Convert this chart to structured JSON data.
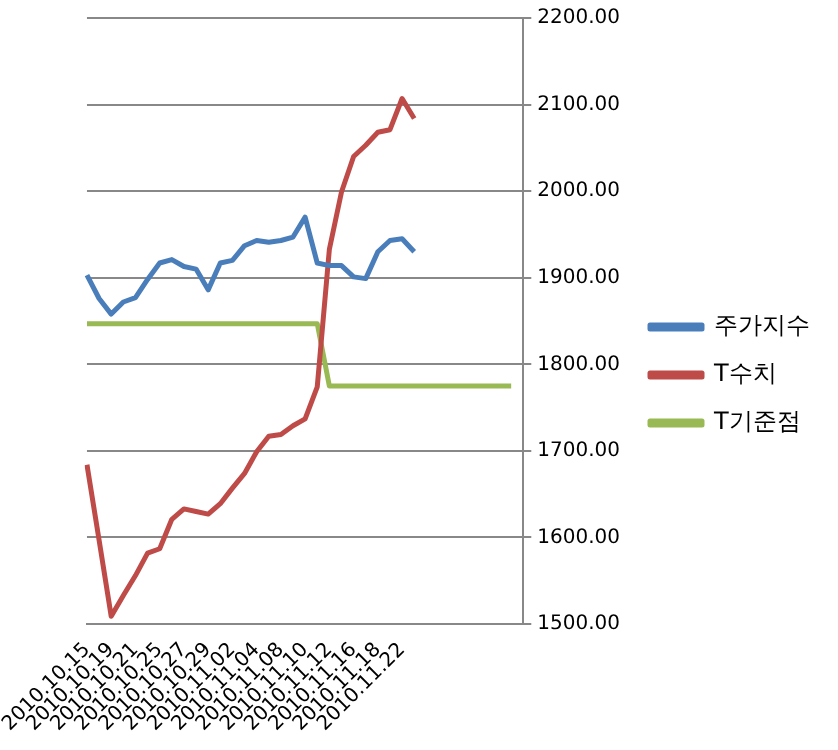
{
  "chart_data": {
    "type": "line",
    "categories": [
      "2010.10.15",
      null,
      "2010.10.19",
      null,
      "2010.10.21",
      null,
      "2010.10.25",
      null,
      "2010.10.27",
      null,
      "2010.10.29",
      null,
      "2010.11.02",
      null,
      "2010.11.04",
      null,
      "2010.11.08",
      null,
      "2010.11.10",
      null,
      "2010.11.12",
      null,
      "2010.11.16",
      null,
      "2010.11.18",
      null,
      "2010.11.22",
      null,
      null,
      null,
      null,
      null,
      null,
      null,
      null,
      null,
      null
    ],
    "series": [
      {
        "name": "주가지수",
        "color": "#4a7ebb",
        "values": [
          1903,
          1876,
          1858,
          1872,
          1877,
          1898,
          1917,
          1921,
          1913,
          1910,
          1886,
          1917,
          1920,
          1937,
          1943,
          1941,
          1943,
          1947,
          1970,
          1917,
          1914,
          1914,
          1901,
          1899,
          1930,
          1943,
          1945,
          1930,
          null,
          null,
          null,
          null,
          null,
          null,
          null,
          null,
          null
        ]
      },
      {
        "name": "T수치",
        "color": "#be4b48",
        "values": [
          1684,
          1597,
          1509,
          1533,
          1556,
          1582,
          1587,
          1621,
          1633,
          1630,
          1627,
          1639,
          1657,
          1674,
          1699,
          1717,
          1719,
          1729,
          1737,
          1774,
          1933,
          1999,
          2040,
          2053,
          2068,
          2071,
          2107,
          2084,
          null,
          null,
          null,
          null,
          null,
          null,
          null,
          null,
          null
        ]
      },
      {
        "name": "T기준점",
        "color": "#98b954",
        "values": [
          1847,
          1847,
          1847,
          1847,
          1847,
          1847,
          1847,
          1847,
          1847,
          1847,
          1847,
          1847,
          1847,
          1847,
          1847,
          1847,
          1847,
          1847,
          1847,
          1847,
          1775,
          1775,
          1775,
          1775,
          1775,
          1775,
          1775,
          1775,
          1775,
          1775,
          1775,
          1775,
          1775,
          1775,
          1775,
          1775,
          null
        ]
      }
    ],
    "ylim": [
      1500,
      2200
    ],
    "yticks": [
      {
        "value": 1500,
        "label": "1500.00"
      },
      {
        "value": 1600,
        "label": "1600.00"
      },
      {
        "value": 1700,
        "label": "1700.00"
      },
      {
        "value": 1800,
        "label": "1800.00"
      },
      {
        "value": 1900,
        "label": "1900.00"
      },
      {
        "value": 2000,
        "label": "2000.00"
      },
      {
        "value": 2100,
        "label": "2100.00"
      },
      {
        "value": 2200,
        "label": "2200.00"
      }
    ],
    "grid": "y",
    "legend": "right",
    "marker": "none",
    "line_style": "solid"
  }
}
